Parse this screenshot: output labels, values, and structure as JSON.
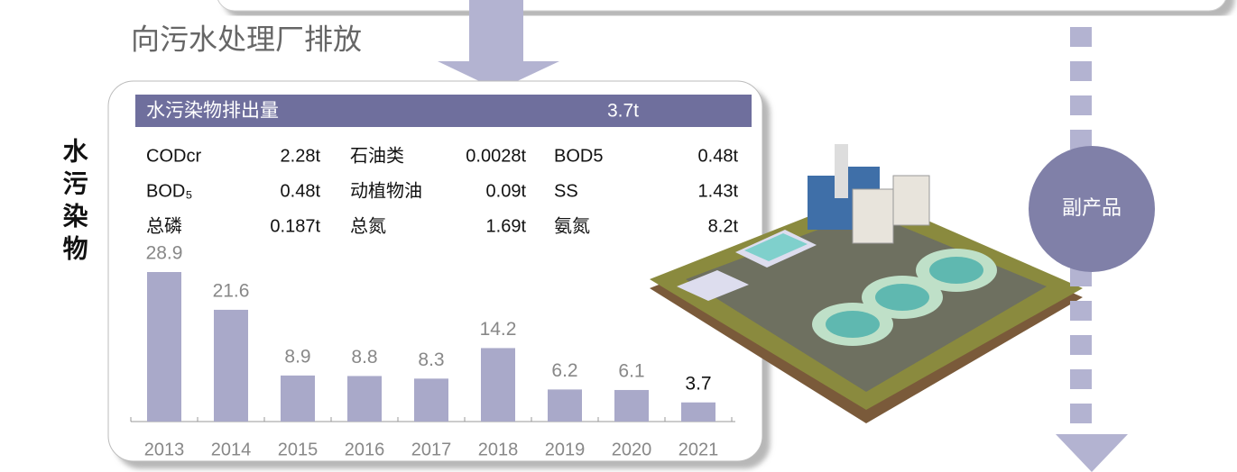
{
  "header": {
    "title": "向污水处理厂排放"
  },
  "side_label": "水污染物",
  "byproduct_label": "副产品",
  "table": {
    "header": [
      "水污染物排出量",
      "3.7t"
    ],
    "rows": [
      [
        "CODcr",
        "2.28t",
        "石油类",
        "0.0028t",
        "BOD5",
        "0.48t"
      ],
      [
        "BOD₅",
        "0.48t",
        "动植物油",
        "0.09t",
        "SS",
        "1.43t"
      ],
      [
        "总磷",
        "0.187t",
        "总氮",
        "1.69t",
        "氨氮",
        "8.2t"
      ]
    ]
  },
  "chart_data": {
    "type": "bar",
    "categories": [
      "2013",
      "2014",
      "2015",
      "2016",
      "2017",
      "2018",
      "2019",
      "2020",
      "2021"
    ],
    "values": [
      28.9,
      21.6,
      8.9,
      8.8,
      8.3,
      14.2,
      6.2,
      6.1,
      3.7
    ],
    "color": "#a9a9c9"
  }
}
